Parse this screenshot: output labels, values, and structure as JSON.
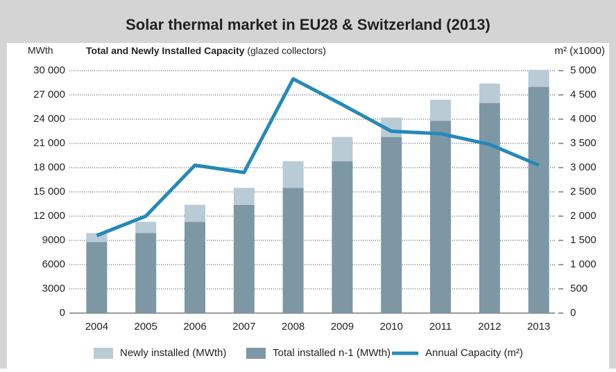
{
  "chart_data": {
    "type": "bar",
    "title": "Solar thermal market in EU28 & Switzerland (2013)",
    "subtitle": "Total and Newly Installed Capacity",
    "subtitle_note": "(glazed collectors)",
    "y_label": "MWth",
    "y2_label": "m² (x1000)",
    "categories": [
      "2004",
      "2005",
      "2006",
      "2007",
      "2008",
      "2009",
      "2010",
      "2011",
      "2012",
      "2013"
    ],
    "series": [
      {
        "name": "Newly installed (MWth)",
        "color": "#b9cbd5",
        "type": "bar",
        "values": [
          1100,
          1400,
          2100,
          2100,
          3300,
          3000,
          2400,
          2600,
          2400,
          2100
        ]
      },
      {
        "name": "Total installed n-1 (MWth)",
        "color": "#7e97a5",
        "type": "bar",
        "values": [
          8800,
          9900,
          11300,
          13400,
          15500,
          18800,
          21800,
          23800,
          26000,
          28000
        ]
      },
      {
        "name": "Annual Capacity (m²)",
        "color": "#2589b8",
        "type": "line",
        "axis": "y2",
        "values": [
          1600,
          2000,
          3050,
          2900,
          4830,
          4300,
          3750,
          3700,
          3480,
          3050
        ]
      }
    ],
    "stacked": true,
    "ylim": [
      0,
      30000
    ],
    "yticks": [
      0,
      3000,
      6000,
      9000,
      {
        "value": 12000,
        "label": "12 000"
      },
      {
        "value": 15000,
        "label": "15 000"
      },
      {
        "value": 18000,
        "label": "18 000"
      },
      {
        "value": 21000,
        "label": "21 000"
      },
      {
        "value": 24000,
        "label": "24 000"
      },
      {
        "value": 27000,
        "label": "27 000"
      },
      {
        "value": 30000,
        "label": "30 000"
      }
    ],
    "y2lim": [
      0,
      5000
    ],
    "y2ticks": [
      0,
      500,
      {
        "value": 1000,
        "label": "1 000"
      },
      {
        "value": 1500,
        "label": "1 500"
      },
      {
        "value": 2000,
        "label": "2 000"
      },
      {
        "value": 2500,
        "label": "2 500"
      },
      {
        "value": 3000,
        "label": "3 000"
      },
      {
        "value": 3500,
        "label": "3 500"
      },
      {
        "value": 4000,
        "label": "4 000"
      },
      {
        "value": 4500,
        "label": "4 500"
      },
      {
        "value": 5000,
        "label": "5 000"
      }
    ],
    "grid": true,
    "legend": "bottom"
  }
}
